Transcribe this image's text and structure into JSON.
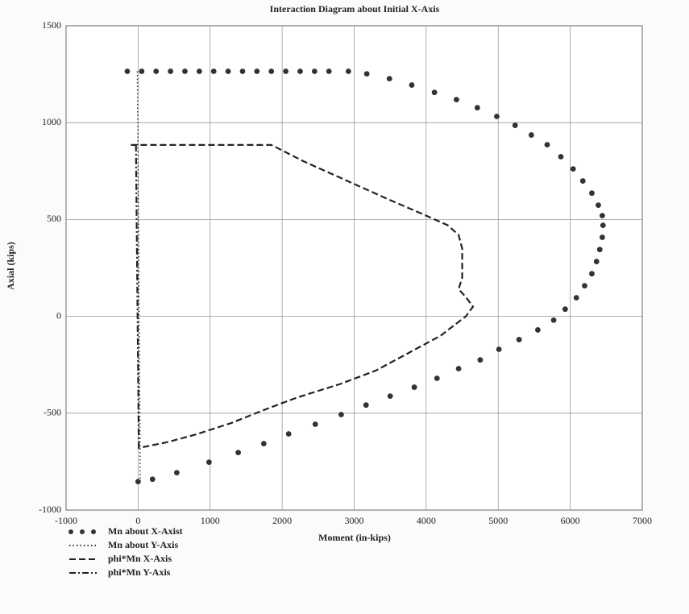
{
  "chart_data": {
    "type": "line",
    "title": "Interaction Diagram about Initial X-Axis",
    "x_label": "Moment (in-kips)",
    "y_label": "Axial (kips)",
    "xlim": [
      -1000,
      7000
    ],
    "ylim": [
      -1000,
      1500
    ],
    "xticks": [
      -1000,
      0,
      1000,
      2000,
      3000,
      4000,
      5000,
      6000,
      7000
    ],
    "yticks": [
      -1000,
      -500,
      0,
      500,
      1000,
      1500
    ],
    "grid": true,
    "legend": "bottom-left",
    "series": [
      {
        "name": "Mn about X-Axist",
        "color": "#333333",
        "style": "dots",
        "x": [
          -150,
          50,
          250,
          450,
          650,
          850,
          1050,
          1250,
          1450,
          1650,
          1850,
          2050,
          2250,
          2450,
          2650,
          2920,
          3175,
          3490,
          3800,
          4115,
          4420,
          4710,
          4980,
          5235,
          5460,
          5680,
          5870,
          6040,
          6175,
          6300,
          6390,
          6445,
          6455,
          6445,
          6410,
          6365,
          6300,
          6200,
          6085,
          5930,
          5770,
          5550,
          5290,
          5010,
          4750,
          4450,
          4150,
          3835,
          3500,
          3165,
          2820,
          2460,
          2090,
          1745,
          1390,
          985,
          537,
          200,
          0
        ],
        "values": [
          1265,
          1265,
          1265,
          1265,
          1265,
          1265,
          1265,
          1265,
          1265,
          1265,
          1265,
          1265,
          1265,
          1265,
          1265,
          1265,
          1252,
          1227,
          1194,
          1156,
          1119,
          1077,
          1032,
          986,
          936,
          886,
          824,
          761,
          699,
          636,
          574,
          520,
          470,
          408,
          345,
          283,
          220,
          158,
          96,
          37,
          -20,
          -70,
          -120,
          -170,
          -225,
          -270,
          -320,
          -366,
          -412,
          -458,
          -507,
          -557,
          -607,
          -657,
          -703,
          -753,
          -807,
          -841,
          -853
        ]
      },
      {
        "name": "Mn about Y-Axis",
        "color": "#333333",
        "style": "dotted",
        "x": [
          -10,
          30
        ],
        "values": [
          1265,
          -850
        ]
      },
      {
        "name": "phi*Mn X-Axis",
        "color": "#222222",
        "style": "dashed",
        "x": [
          -100,
          1850,
          2300,
          2900,
          3500,
          4000,
          4300,
          4450,
          4500,
          4500,
          4450,
          4550,
          4650,
          4550,
          4200,
          3700,
          3300,
          2800,
          2200,
          1700,
          1300,
          800,
          400,
          0
        ],
        "values": [
          885,
          885,
          800,
          700,
          600,
          520,
          470,
          420,
          350,
          200,
          140,
          100,
          50,
          0,
          -100,
          -200,
          -280,
          -350,
          -420,
          -490,
          -550,
          -610,
          -650,
          -680
        ]
      },
      {
        "name": "phi*Mn Y-Axis",
        "color": "#222222",
        "style": "dashdot",
        "x": [
          -30,
          10
        ],
        "values": [
          885,
          -680
        ]
      }
    ]
  }
}
